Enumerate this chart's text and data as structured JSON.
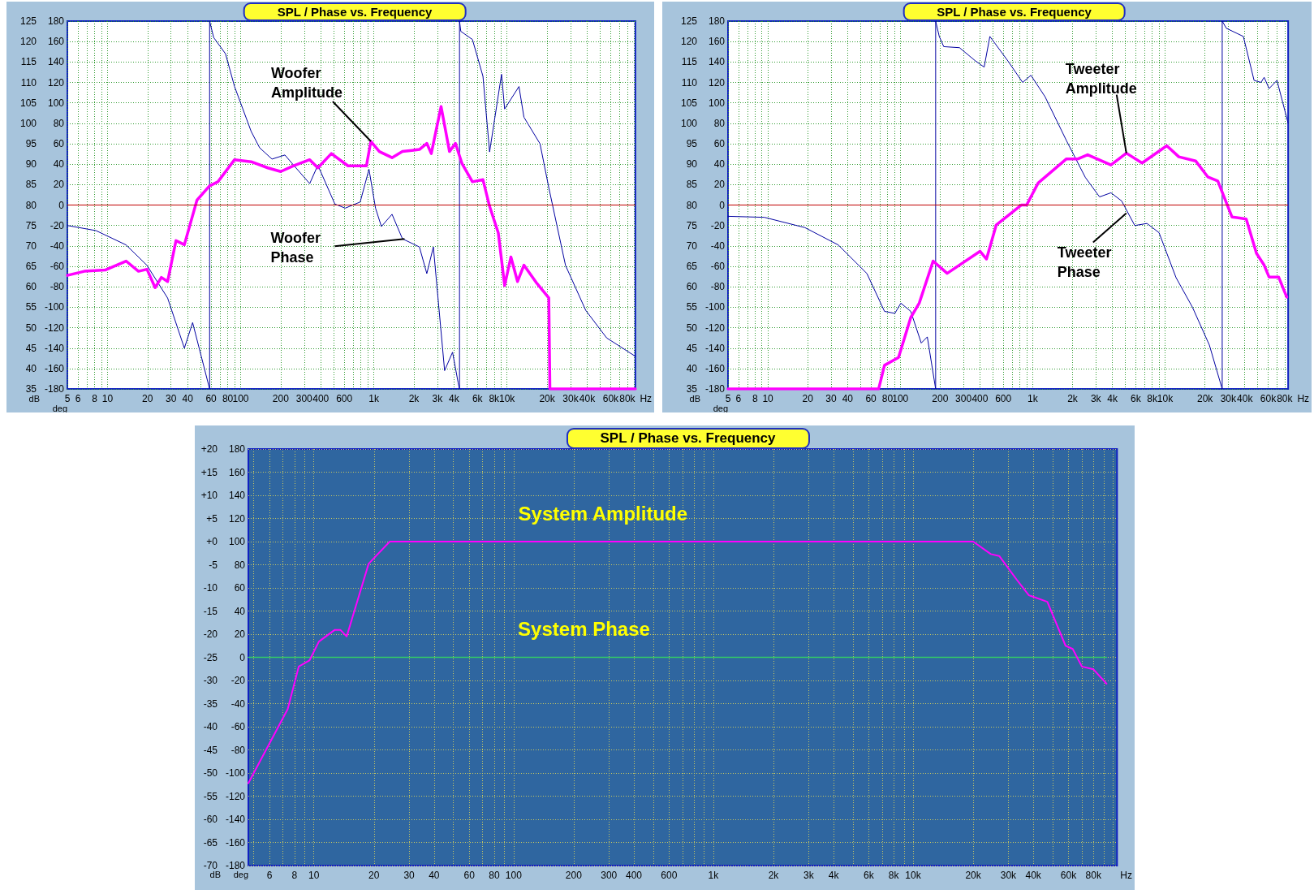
{
  "chart_data": [
    {
      "type": "line",
      "title": "SPL / Phase vs. Frequency",
      "xlabel": "Hz",
      "ylabel": "dB",
      "y2label": "deg",
      "log": "x",
      "grid": true,
      "marker": "none",
      "xlim": [
        5,
        92000
      ],
      "xticks": [
        5,
        6,
        {
          "value": 7,
          "label": null
        },
        8,
        {
          "value": 9,
          "label": null
        },
        10,
        20,
        30,
        40,
        {
          "value": 50,
          "label": null
        },
        60,
        {
          "value": 70,
          "label": null
        },
        80,
        {
          "value": 90,
          "label": null
        },
        100,
        200,
        300,
        400,
        {
          "value": 500,
          "label": null
        },
        600,
        {
          "value": 700,
          "label": null
        },
        {
          "value": 800,
          "label": null
        },
        {
          "value": 900,
          "label": null
        },
        {
          "value": 1000,
          "label": "1k"
        },
        {
          "value": 2000,
          "label": "2k"
        },
        {
          "value": 3000,
          "label": "3k"
        },
        {
          "value": 4000,
          "label": "4k"
        },
        {
          "value": 5000,
          "label": null
        },
        {
          "value": 6000,
          "label": "6k"
        },
        {
          "value": 7000,
          "label": null
        },
        {
          "value": 8000,
          "label": "8k"
        },
        {
          "value": 9000,
          "label": null
        },
        {
          "value": 10000,
          "label": "10k"
        },
        {
          "value": 20000,
          "label": "20k"
        },
        {
          "value": 30000,
          "label": "30k"
        },
        {
          "value": 40000,
          "label": "40k"
        },
        {
          "value": 50000,
          "label": null
        },
        {
          "value": 60000,
          "label": "60k"
        },
        {
          "value": 70000,
          "label": null
        },
        {
          "value": 80000,
          "label": "80k"
        },
        {
          "value": 90000,
          "label": null
        }
      ],
      "ylim": [
        35,
        125
      ],
      "yticks": [
        35,
        40,
        45,
        50,
        55,
        60,
        65,
        70,
        75,
        80,
        85,
        90,
        95,
        100,
        105,
        110,
        115,
        120,
        125
      ],
      "y2lim": [
        -180,
        180
      ],
      "y2ticks": [
        -180,
        -160,
        -140,
        -120,
        -100,
        -80,
        -60,
        -40,
        -20,
        0,
        20,
        40,
        60,
        80,
        100,
        120,
        140,
        160,
        180
      ],
      "ref_lines": [
        {
          "axis": "y",
          "value": 80,
          "color": "#c00000"
        }
      ],
      "annotations": [
        {
          "text": "Woofer Amplitude",
          "x": 950,
          "y": 95.6
        },
        {
          "text": "Woofer Phase",
          "x": 1700,
          "y": 71.7
        }
      ],
      "series": [
        {
          "color": "#ff00ff",
          "x": [
            5,
            6.7,
            9.6,
            13.8,
            17.1,
            19.8,
            22.8,
            25.4,
            28.3,
            32.7,
            37.8,
            47,
            58.5,
            67.5,
            90,
            120,
            160,
            200,
            250,
            330,
            380,
            480,
            640,
            880,
            950,
            1100,
            1370,
            1640,
            2200,
            2500,
            2700,
            3200,
            3700,
            4100,
            4600,
            5500,
            6600,
            7400,
            8600,
            9600,
            10700,
            12000,
            13400,
            16800,
            20600,
            21000,
            92000
          ],
          "values": [
            62.8,
            63.8,
            64.1,
            66.3,
            63.8,
            64.3,
            59.8,
            62.3,
            61.3,
            71.3,
            70.3,
            81.2,
            84.7,
            85.7,
            91.1,
            90.6,
            89.1,
            88.2,
            89.6,
            91.1,
            89.1,
            92.6,
            89.6,
            89.6,
            95.6,
            93.1,
            91.6,
            93.1,
            93.6,
            95.1,
            92.6,
            104.1,
            93.1,
            95.1,
            90.1,
            85.7,
            86.2,
            79.7,
            73.2,
            60.3,
            67.3,
            61.3,
            65.3,
            60.8,
            57.3,
            35,
            35
          ]
        },
        {
          "color": "#0000a0",
          "axis": "y2",
          "x": [
            5,
            8.2,
            13.8,
            19.8,
            28.3,
            37.8,
            43.6,
            58.5,
            58.5,
            62.7,
            77,
            90,
            120,
            139,
            172,
            215,
            250,
            330,
            380,
            510,
            610,
            790,
            920,
            1030,
            1140,
            1370,
            1640,
            2200,
            2500,
            2800,
            3400,
            3900,
            4300,
            4400,
            4400,
            4500,
            5500,
            6600,
            7400,
            9100,
            9600,
            12300,
            13400,
            17700,
            20600,
            27500,
            39000,
            56000,
            92000
          ],
          "values": [
            -20,
            -25,
            -39,
            -59,
            -91,
            -140,
            -115,
            -180,
            180,
            164,
            148,
            116,
            72,
            56,
            45,
            49,
            39,
            21,
            39,
            1,
            -3,
            3,
            35,
            -3,
            -21,
            -9,
            -33,
            -41,
            -67,
            -41,
            -162,
            -144,
            -174,
            -180,
            180,
            170,
            162,
            126,
            52,
            128,
            94,
            116,
            86,
            60,
            17,
            -59,
            -103,
            -130,
            -148
          ]
        }
      ]
    },
    {
      "type": "line",
      "title": "SPL / Phase vs. Frequency",
      "xlabel": "Hz",
      "ylabel": "dB",
      "y2label": "deg",
      "log": "x",
      "grid": true,
      "marker": "none",
      "xlim": [
        5,
        85000
      ],
      "xticks": [
        5,
        6,
        {
          "value": 7,
          "label": null
        },
        8,
        {
          "value": 9,
          "label": null
        },
        10,
        20,
        30,
        40,
        {
          "value": 50,
          "label": null
        },
        60,
        {
          "value": 70,
          "label": null
        },
        80,
        {
          "value": 90,
          "label": null
        },
        100,
        200,
        300,
        400,
        {
          "value": 500,
          "label": null
        },
        600,
        {
          "value": 700,
          "label": null
        },
        {
          "value": 800,
          "label": null
        },
        {
          "value": 900,
          "label": null
        },
        {
          "value": 1000,
          "label": "1k"
        },
        {
          "value": 2000,
          "label": "2k"
        },
        {
          "value": 3000,
          "label": "3k"
        },
        {
          "value": 4000,
          "label": "4k"
        },
        {
          "value": 5000,
          "label": null
        },
        {
          "value": 6000,
          "label": "6k"
        },
        {
          "value": 7000,
          "label": null
        },
        {
          "value": 8000,
          "label": "8k"
        },
        {
          "value": 9000,
          "label": null
        },
        {
          "value": 10000,
          "label": "10k"
        },
        {
          "value": 20000,
          "label": "20k"
        },
        {
          "value": 30000,
          "label": "30k"
        },
        {
          "value": 40000,
          "label": "40k"
        },
        {
          "value": 50000,
          "label": null
        },
        {
          "value": 60000,
          "label": "60k"
        },
        {
          "value": 70000,
          "label": null
        },
        {
          "value": 80000,
          "label": "80k"
        }
      ],
      "ylim": [
        35,
        125
      ],
      "yticks": [
        35,
        40,
        45,
        50,
        55,
        60,
        65,
        70,
        75,
        80,
        85,
        90,
        95,
        100,
        105,
        110,
        115,
        120,
        125
      ],
      "y2lim": [
        -180,
        180
      ],
      "y2ticks": [
        -180,
        -160,
        -140,
        -120,
        -100,
        -80,
        -60,
        -40,
        -20,
        0,
        20,
        40,
        60,
        80,
        100,
        120,
        140,
        160,
        180
      ],
      "ref_lines": [
        {
          "axis": "y",
          "value": 80,
          "color": "#c00000"
        }
      ],
      "annotations": [
        {
          "text": "Tweeter Amplitude",
          "x": 5100,
          "y": 92.7
        },
        {
          "text": "Tweeter Phase",
          "x": 5100,
          "y": 78
        }
      ],
      "series": [
        {
          "color": "#ff00ff",
          "x": [
            5,
            68.6,
            76,
            97,
            120,
            139,
            177,
            226,
            400,
            448,
            530,
            820,
            900,
            1100,
            1800,
            2200,
            2600,
            3900,
            5100,
            6700,
            10300,
            12700,
            17000,
            21000,
            25000,
            32000,
            41000,
            49000,
            56000,
            61000,
            72000,
            83000
          ],
          "values": [
            35,
            35,
            40.8,
            42.7,
            52.5,
            56,
            66.3,
            63.3,
            68.7,
            66.8,
            75.1,
            80,
            80,
            85.4,
            91.3,
            91.3,
            92.3,
            89.8,
            92.7,
            90.3,
            94.5,
            91.8,
            90.8,
            86.9,
            85.9,
            77.1,
            76.6,
            68.2,
            65.3,
            62.4,
            62.4,
            57.5
          ]
        },
        {
          "color": "#0000a0",
          "axis": "y2",
          "x": [
            5,
            9.4,
            19,
            34,
            56,
            76,
            91,
            101,
            120,
            144,
            160,
            185,
            185,
            197,
            213,
            280,
            370,
            430,
            475,
            650,
            840,
            970,
            1240,
            1800,
            2500,
            3200,
            3900,
            4700,
            5900,
            7300,
            9000,
            12100,
            16100,
            21600,
            27000,
            27000,
            29000,
            39000,
            47000,
            53000,
            56000,
            61000,
            70000,
            85000
          ],
          "values": [
            -11,
            -12,
            -22,
            -39,
            -67,
            -104,
            -106,
            -96,
            -104,
            -135,
            -129,
            -180,
            180,
            165,
            155,
            154,
            141,
            135,
            165,
            141,
            120,
            127,
            106,
            63,
            27,
            8,
            12,
            4,
            -20,
            -18,
            -27,
            -71,
            -100,
            -137,
            -180,
            180,
            173,
            165,
            122,
            120,
            125,
            114,
            122,
            80
          ]
        }
      ]
    },
    {
      "type": "line",
      "title": "SPL / Phase vs. Frequency",
      "xlabel": "Hz",
      "ylabel": "dB",
      "y2label": "deg",
      "log": "x",
      "grid": true,
      "marker": "none",
      "xlim": [
        4.7,
        105000
      ],
      "xticks": [
        {
          "value": 5,
          "label": null
        },
        6,
        {
          "value": 7,
          "label": null
        },
        8,
        {
          "value": 9,
          "label": null
        },
        10,
        20,
        30,
        40,
        {
          "value": 50,
          "label": null
        },
        60,
        {
          "value": 70,
          "label": null
        },
        80,
        {
          "value": 90,
          "label": null
        },
        100,
        200,
        300,
        400,
        {
          "value": 500,
          "label": null
        },
        600,
        {
          "value": 700,
          "label": null
        },
        {
          "value": 800,
          "label": null
        },
        {
          "value": 900,
          "label": null
        },
        {
          "value": 1000,
          "label": "1k"
        },
        {
          "value": 2000,
          "label": "2k"
        },
        {
          "value": 3000,
          "label": "3k"
        },
        {
          "value": 4000,
          "label": "4k"
        },
        {
          "value": 5000,
          "label": null
        },
        {
          "value": 6000,
          "label": "6k"
        },
        {
          "value": 7000,
          "label": null
        },
        {
          "value": 8000,
          "label": "8k"
        },
        {
          "value": 9000,
          "label": null
        },
        {
          "value": 10000,
          "label": "10k"
        },
        {
          "value": 20000,
          "label": "20k"
        },
        {
          "value": 30000,
          "label": "30k"
        },
        {
          "value": 40000,
          "label": "40k"
        },
        {
          "value": 50000,
          "label": null
        },
        {
          "value": 60000,
          "label": "60k"
        },
        {
          "value": 70000,
          "label": null
        },
        {
          "value": 80000,
          "label": "80k"
        },
        {
          "value": 90000,
          "label": null
        },
        {
          "value": 100000,
          "label": null
        }
      ],
      "ylim": [
        -70,
        20
      ],
      "yticks": [
        -70,
        -65,
        -60,
        -55,
        -50,
        -45,
        -40,
        -35,
        -30,
        -25,
        -20,
        -15,
        -10,
        -5,
        {
          "value": 0,
          "label": "+0"
        },
        {
          "value": 5,
          "label": "+5"
        },
        {
          "value": 10,
          "label": "+10"
        },
        {
          "value": 15,
          "label": "+15"
        },
        {
          "value": 20,
          "label": "+20"
        }
      ],
      "y2lim": [
        -180,
        180
      ],
      "y2ticks": [
        -180,
        -160,
        -140,
        -120,
        -100,
        -80,
        -60,
        -40,
        -20,
        0,
        20,
        40,
        60,
        80,
        100,
        120,
        140,
        160,
        180
      ],
      "annotations": [
        {
          "text": "System Amplitude",
          "x": 280,
          "y": 0
        },
        {
          "text": "System Phase",
          "x": 225,
          "y": -25
        }
      ],
      "series": [
        {
          "color": "#ff00ff",
          "x": [
            4.7,
            7.4,
            8.4,
            9.5,
            10.6,
            12.7,
            13.6,
            14.6,
            18.8,
            20.9,
            24,
            20000,
            24500,
            27000,
            33000,
            38000,
            47000,
            58000,
            63000,
            70000,
            80000,
            93000
          ],
          "values": [
            -52.2,
            -36.2,
            -27,
            -25.7,
            -21.6,
            -19.1,
            -19.1,
            -20.5,
            -4.8,
            -2.7,
            0,
            0,
            -2.7,
            -3.1,
            -8.2,
            -11.6,
            -13,
            -22.5,
            -23.2,
            -27,
            -27.6,
            -30.7
          ]
        },
        {
          "color": "#33cc66",
          "axis": "y2",
          "x": [
            4.7,
            93000
          ],
          "values": [
            0,
            0
          ]
        }
      ]
    }
  ]
}
